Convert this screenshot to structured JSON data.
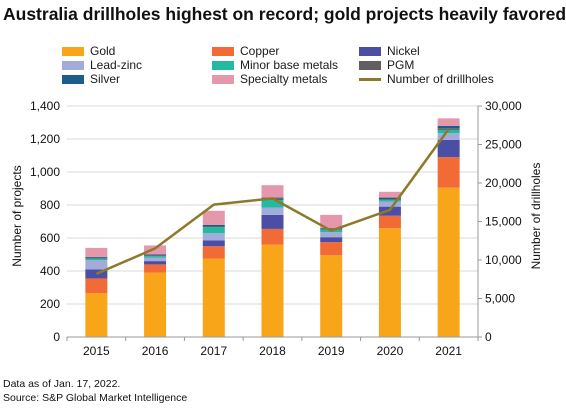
{
  "chart_data": {
    "type": "bar",
    "stacked": true,
    "title": "Australia drillholes highest on record; gold projects heavily favored",
    "xlabel": "",
    "ylabel": "Number of projects",
    "y2label": "Number of drillholes",
    "categories": [
      "2015",
      "2016",
      "2017",
      "2018",
      "2019",
      "2020",
      "2021"
    ],
    "ylim": [
      0,
      1400
    ],
    "yticks": [
      "0",
      "200",
      "400",
      "600",
      "800",
      "1,000",
      "1,200",
      "1,400"
    ],
    "y2lim": [
      0,
      30000
    ],
    "y2ticks": [
      "0",
      "5,000",
      "10,000",
      "15,000",
      "20,000",
      "25,000",
      "30,000"
    ],
    "legend_position": "top",
    "series": [
      {
        "name": "Gold",
        "color": "#F9A51A",
        "values": [
          265,
          390,
          475,
          560,
          495,
          660,
          905
        ]
      },
      {
        "name": "Copper",
        "color": "#F26B36",
        "values": [
          90,
          50,
          75,
          95,
          80,
          75,
          185
        ]
      },
      {
        "name": "Nickel",
        "color": "#4A4EA5",
        "values": [
          55,
          20,
          35,
          85,
          30,
          55,
          105
        ]
      },
      {
        "name": "Lead-zinc",
        "color": "#A3ABDA",
        "values": [
          55,
          20,
          45,
          45,
          30,
          30,
          40
        ]
      },
      {
        "name": "Minor base metals",
        "color": "#22BAA0",
        "values": [
          10,
          10,
          35,
          45,
          15,
          10,
          20
        ]
      },
      {
        "name": "PGM",
        "color": "#606060",
        "values": [
          5,
          5,
          5,
          10,
          5,
          5,
          10
        ]
      },
      {
        "name": "Silver",
        "color": "#1D5D8C",
        "values": [
          5,
          5,
          10,
          5,
          5,
          10,
          15
        ]
      },
      {
        "name": "Specialty metals",
        "color": "#E597AC",
        "values": [
          55,
          55,
          85,
          75,
          80,
          35,
          45
        ]
      }
    ],
    "line": {
      "name": "Number of drillholes",
      "color": "#8C7A2A",
      "axis": "right",
      "values": [
        8200,
        11500,
        17200,
        18000,
        13800,
        16500,
        27000
      ]
    }
  },
  "footer": {
    "note": "Data as of Jan. 17, 2022.",
    "source": "Source: S&P Global Market Intelligence"
  }
}
